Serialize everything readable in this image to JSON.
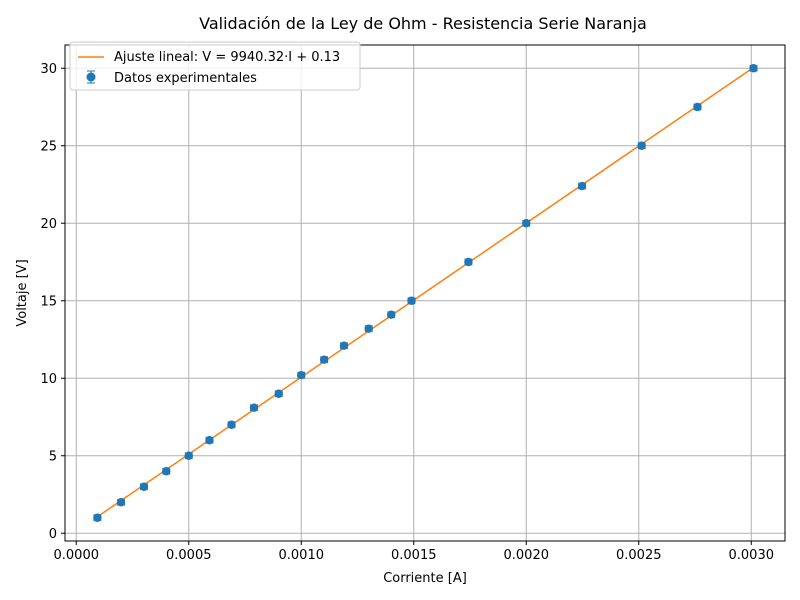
{
  "chart_data": {
    "type": "scatter",
    "title": "Validación de la Ley de Ohm - Resistencia Serie Naranja",
    "xlabel": "Corriente [A]",
    "ylabel": "Voltaje [V]",
    "xlim": [
      -5e-05,
      0.00315
    ],
    "ylim": [
      -0.5,
      31.5
    ],
    "xticks": [
      0.0,
      0.0005,
      0.001,
      0.0015,
      0.002,
      0.0025,
      0.003
    ],
    "xtick_labels": [
      "0.0000",
      "0.0005",
      "0.0010",
      "0.0015",
      "0.0020",
      "0.0025",
      "0.0030"
    ],
    "yticks": [
      0,
      5,
      10,
      15,
      20,
      25,
      30
    ],
    "ytick_labels": [
      "0",
      "5",
      "10",
      "15",
      "20",
      "25",
      "30"
    ],
    "grid": true,
    "legend_position": "top-left",
    "series": [
      {
        "name": "Datos experimentales",
        "kind": "errorbar",
        "color": "#1f77b4",
        "x": [
          9.4e-05,
          0.000199,
          0.000301,
          0.0004,
          0.0005,
          0.000592,
          0.00069,
          0.00079,
          0.0009,
          0.001,
          0.001102,
          0.00119,
          0.0013,
          0.0014,
          0.00149,
          0.001743,
          0.002,
          0.002248,
          0.002513,
          0.002761,
          0.00301
        ],
        "y": [
          1.0,
          2.0,
          3.0,
          4.0,
          5.0,
          6.0,
          7.0,
          8.1,
          9.0,
          10.2,
          11.2,
          12.1,
          13.2,
          14.1,
          15.0,
          17.5,
          20.0,
          22.4,
          25.0,
          27.5,
          30.0
        ],
        "xerr": 1.5e-05
      },
      {
        "name": "Ajuste lineal: V = 9940.32·I + 0.13",
        "kind": "line",
        "color": "#ff7f0e",
        "slope": 9940.32,
        "intercept": 0.13,
        "x_range": [
          9.4e-05,
          0.00301
        ]
      }
    ]
  }
}
